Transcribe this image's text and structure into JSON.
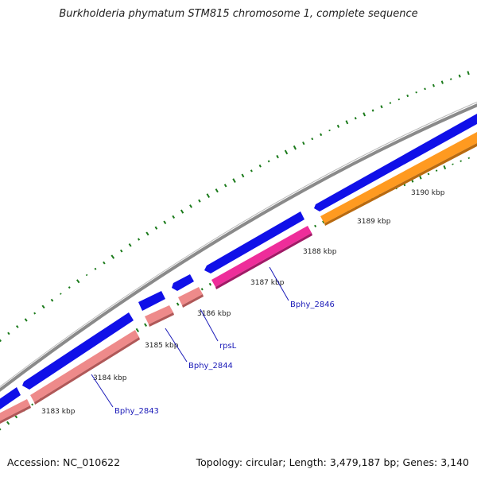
{
  "title": "Burkholderia phymatum STM815 chromosome 1, complete sequence",
  "footer": {
    "accession": "Accession: NC_010622",
    "summary": "Topology: circular; Length: 3,479,187 bp; Genes: 3,140"
  },
  "map": {
    "colors": {
      "backbone": "#8a8a8a",
      "cds_forward": "#1010e8",
      "cds_reverse": "#ee8a8a",
      "rrna_reverse": "#ee2d9a",
      "orange_feature": "#ff9a20",
      "gc_ticks": "#1a7a1a",
      "gene_label": "#1a1ab8"
    },
    "tick_labels": [
      "3183 kbp",
      "3184 kbp",
      "3185 kbp",
      "3186 kbp",
      "3187 kbp",
      "3188 kbp",
      "3189 kbp",
      "3190 kbp"
    ],
    "gene_labels": [
      "Bphy_2843",
      "Bphy_2844",
      "rpsL",
      "Bphy_2846"
    ]
  }
}
